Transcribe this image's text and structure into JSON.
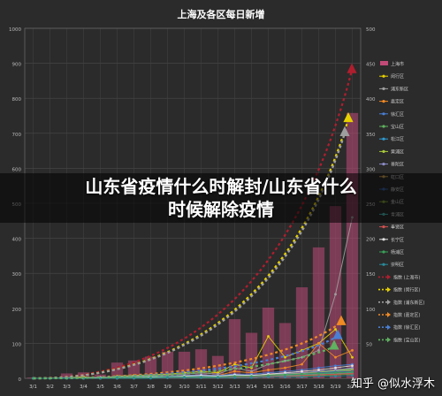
{
  "overlay": {
    "headline_line1": "山东省疫情什么时解封/山东省什么",
    "headline_line2": "时候解除疫情",
    "watermark": "知乎 @似水浮木"
  },
  "chart_data": {
    "type": "bar",
    "title": "上海及各区每日新增",
    "categories": [
      "3/1",
      "3/2",
      "3/3",
      "3/4",
      "3/5",
      "3/6",
      "3/7",
      "3/8",
      "3/9",
      "3/10",
      "3/11",
      "3/12",
      "3/13",
      "3/14",
      "3/15",
      "3/16",
      "3/17",
      "3/18",
      "3/19",
      "3/20"
    ],
    "y_left": {
      "ylim": [
        0,
        1000
      ],
      "ticks": [
        0,
        100,
        200,
        300,
        400,
        500,
        600,
        700,
        800,
        900,
        1000
      ]
    },
    "y_right": {
      "ylim": [
        0,
        500
      ],
      "ticks": [
        0,
        50,
        100,
        150,
        200,
        250,
        300,
        350,
        400,
        450,
        500
      ]
    },
    "grid": true,
    "legend_position": "right",
    "bar_series": {
      "name": "上海市",
      "color": "#c04a78",
      "values": [
        2,
        3,
        14,
        17,
        11,
        45,
        51,
        62,
        76,
        76,
        83,
        64,
        169,
        130,
        202,
        158,
        260,
        374,
        492,
        758
      ]
    },
    "series": [
      {
        "name": "闵行区",
        "color": "#e5d000",
        "values": [
          0,
          0,
          1,
          2,
          0,
          3,
          4,
          5,
          6,
          8,
          10,
          8,
          20,
          15,
          60,
          30,
          40,
          50,
          70,
          30
        ]
      },
      {
        "name": "浦东新区",
        "color": "#9e9e9e",
        "values": [
          0,
          0,
          0,
          1,
          1,
          2,
          3,
          4,
          5,
          6,
          8,
          6,
          15,
          10,
          20,
          25,
          30,
          40,
          120,
          230
        ]
      },
      {
        "name": "嘉定区",
        "color": "#f08a24",
        "values": [
          0,
          0,
          0,
          0,
          1,
          1,
          2,
          2,
          3,
          4,
          5,
          4,
          10,
          8,
          12,
          15,
          20,
          50,
          30,
          40
        ]
      },
      {
        "name": "徐汇区",
        "color": "#4a7fd4",
        "values": [
          0,
          0,
          1,
          1,
          0,
          2,
          2,
          3,
          3,
          4,
          5,
          4,
          6,
          6,
          8,
          10,
          12,
          15,
          18,
          20
        ]
      },
      {
        "name": "宝山区",
        "color": "#5fb25f",
        "values": [
          0,
          0,
          0,
          0,
          0,
          1,
          1,
          1,
          2,
          2,
          3,
          2,
          4,
          4,
          5,
          6,
          8,
          10,
          12,
          14
        ]
      },
      {
        "name": "松江区",
        "color": "#2f9bd0",
        "values": [
          0,
          0,
          0,
          0,
          0,
          0,
          1,
          1,
          1,
          2,
          2,
          2,
          3,
          3,
          4,
          5,
          6,
          8,
          10,
          12
        ]
      },
      {
        "name": "黄浦区",
        "color": "#a6c83a",
        "values": [
          0,
          0,
          0,
          1,
          0,
          1,
          1,
          2,
          2,
          3,
          3,
          2,
          4,
          3,
          5,
          6,
          7,
          9,
          11,
          13
        ]
      },
      {
        "name": "普陀区",
        "color": "#8c8cc8",
        "values": [
          0,
          0,
          0,
          0,
          1,
          1,
          2,
          2,
          2,
          3,
          3,
          3,
          4,
          4,
          6,
          7,
          8,
          10,
          12,
          15
        ]
      },
      {
        "name": "虹口区",
        "color": "#c8a050",
        "values": [
          0,
          0,
          0,
          0,
          0,
          1,
          1,
          1,
          2,
          2,
          2,
          2,
          3,
          3,
          4,
          5,
          6,
          7,
          9,
          11
        ]
      },
      {
        "name": "静安区",
        "color": "#3a5fa0",
        "values": [
          0,
          0,
          0,
          0,
          0,
          1,
          1,
          2,
          2,
          2,
          3,
          2,
          3,
          3,
          4,
          5,
          6,
          8,
          9,
          10
        ]
      },
      {
        "name": "金山区",
        "color": "#7a9a3a",
        "values": [
          0,
          0,
          0,
          0,
          0,
          0,
          0,
          1,
          1,
          1,
          1,
          1,
          2,
          2,
          2,
          3,
          3,
          4,
          5,
          6
        ]
      },
      {
        "name": "青浦区",
        "color": "#4ab4a8",
        "values": [
          0,
          0,
          0,
          0,
          0,
          0,
          1,
          1,
          1,
          2,
          2,
          2,
          3,
          3,
          3,
          4,
          5,
          6,
          7,
          8
        ]
      },
      {
        "name": "奉贤区",
        "color": "#d05050",
        "values": [
          0,
          0,
          0,
          0,
          0,
          0,
          0,
          1,
          1,
          1,
          2,
          1,
          2,
          2,
          3,
          3,
          4,
          5,
          6,
          7
        ]
      },
      {
        "name": "长宁区",
        "color": "#e0e0e0",
        "values": [
          0,
          0,
          0,
          0,
          1,
          1,
          1,
          2,
          2,
          3,
          4,
          3,
          5,
          4,
          6,
          8,
          10,
          12,
          15,
          18
        ]
      },
      {
        "name": "杨浦区",
        "color": "#3aa05a",
        "values": [
          0,
          0,
          0,
          0,
          0,
          1,
          1,
          1,
          2,
          2,
          2,
          2,
          3,
          3,
          4,
          5,
          6,
          7,
          8,
          9
        ]
      },
      {
        "name": "崇明区",
        "color": "#2a8a9a",
        "values": [
          0,
          0,
          0,
          0,
          0,
          0,
          0,
          0,
          1,
          1,
          1,
          1,
          1,
          1,
          2,
          2,
          2,
          3,
          3,
          4
        ]
      }
    ],
    "trend_series": [
      {
        "name": "指数 (上海市)",
        "color": "#b01e2e",
        "from": 0,
        "to": 880
      },
      {
        "name": "指数 (闵行区)",
        "color": "#e5d000",
        "from": 0,
        "to": 370
      },
      {
        "name": "指数 (浦东新区)",
        "color": "#9e9e9e",
        "from": 0,
        "to": 350
      },
      {
        "name": "指数 (嘉定区)",
        "color": "#f08a24",
        "from": 0,
        "to": 80
      },
      {
        "name": "指数 (徐汇区)",
        "color": "#4a7fd4",
        "from": 0,
        "to": 60
      },
      {
        "name": "指数 (宝山区)",
        "color": "#5fb25f",
        "from": 0,
        "to": 45
      }
    ]
  }
}
